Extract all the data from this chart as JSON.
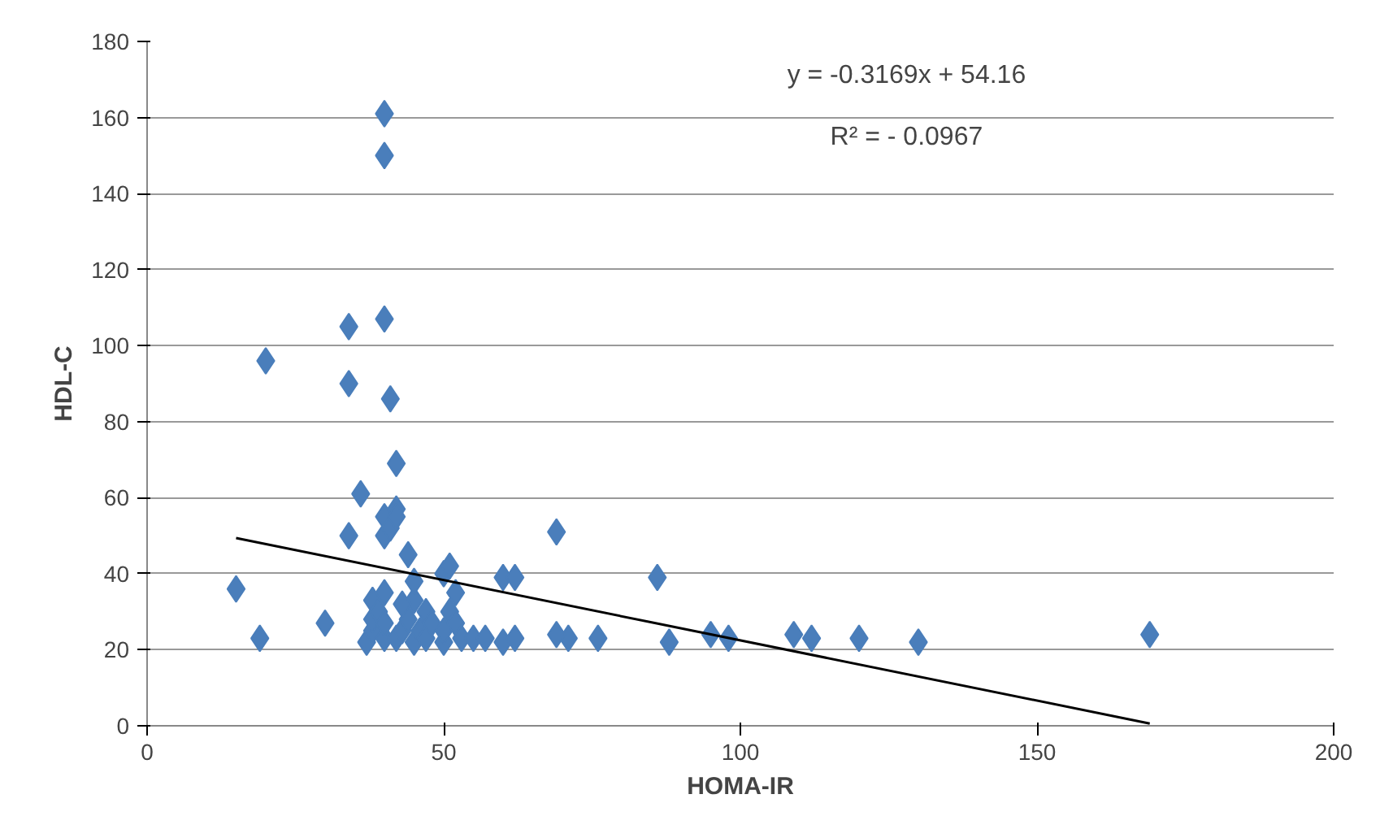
{
  "chart_data": {
    "type": "scatter",
    "xlabel": "HOMA-IR",
    "ylabel": "HDL-C",
    "xlim": [
      0,
      200
    ],
    "xticks": [
      0,
      50,
      100,
      150,
      200
    ],
    "ylim": [
      0,
      180
    ],
    "yticks": [
      0,
      20,
      40,
      60,
      80,
      100,
      120,
      140,
      160,
      180
    ],
    "grid": "y",
    "annotations": [
      "y = -0.3169x + 54.16",
      "R² = - 0.0967"
    ],
    "series": [
      {
        "color": "#4a7ebb",
        "marker": "diamond",
        "x": [
          15,
          19,
          20,
          30,
          34,
          34,
          34,
          40,
          40,
          40,
          41,
          36,
          37,
          38,
          38,
          38,
          39,
          40,
          40,
          40,
          40,
          40,
          41,
          42,
          42,
          42,
          42,
          43,
          44,
          45,
          45,
          45,
          46,
          47,
          47,
          48,
          50,
          50,
          50,
          51,
          51,
          52,
          52,
          53,
          44,
          43,
          55,
          57,
          60,
          62,
          60,
          62,
          69,
          71,
          76,
          86,
          88,
          95,
          98,
          109,
          112,
          120,
          130,
          169,
          69
        ],
        "values": [
          36,
          23,
          96,
          27,
          105,
          90,
          50,
          161,
          150,
          107,
          86,
          61,
          22,
          25,
          28,
          33,
          30,
          23,
          27,
          35,
          50,
          55,
          52,
          69,
          57,
          55,
          23,
          25,
          28,
          22,
          33,
          38,
          25,
          23,
          30,
          27,
          22,
          25,
          40,
          42,
          30,
          35,
          27,
          23,
          45,
          32,
          23,
          23,
          22,
          23,
          39,
          39,
          51,
          23,
          23,
          39,
          22,
          24,
          23,
          24,
          23,
          23,
          22,
          24,
          24
        ]
      },
      {
        "type": "line",
        "color": "#000000",
        "marker": "none",
        "x": [
          15,
          169
        ],
        "values": [
          49.4,
          0.6
        ]
      }
    ]
  }
}
